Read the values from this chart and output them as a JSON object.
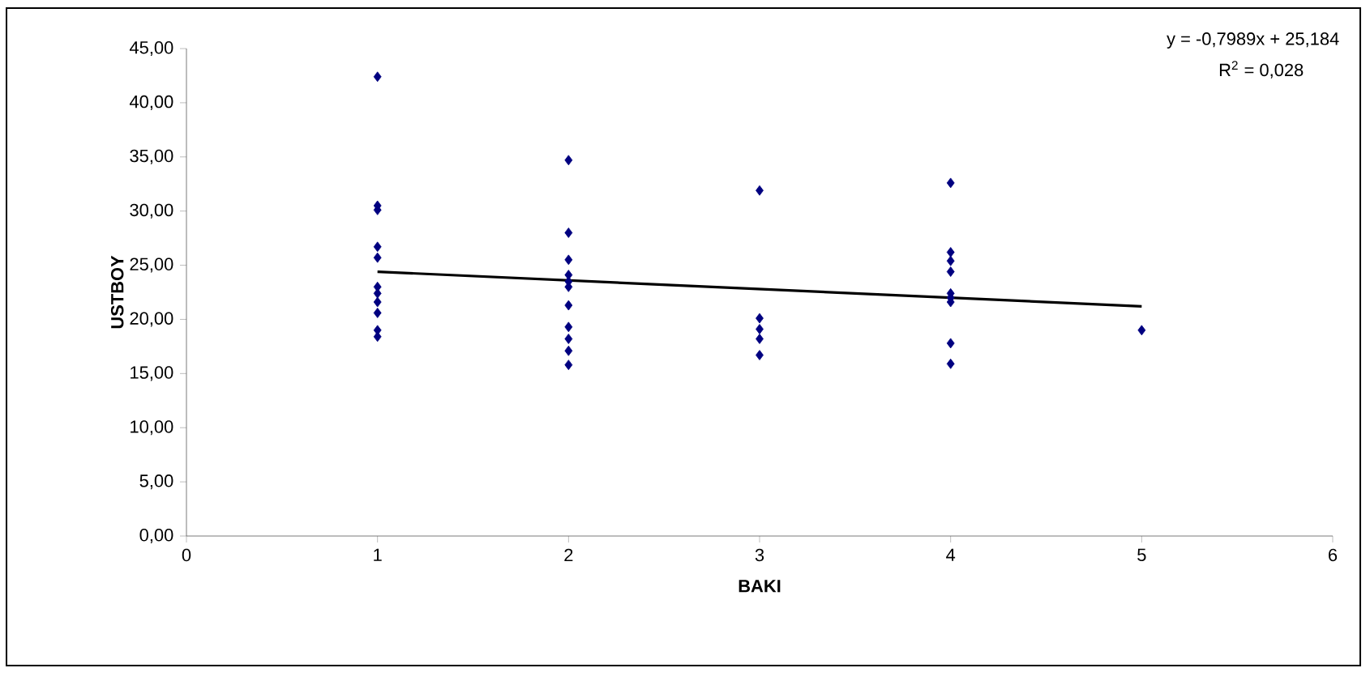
{
  "chart_data": {
    "type": "scatter",
    "xlabel": "BAKI",
    "ylabel": "USTBOY",
    "annotations": [
      "y = -0,7989x + 25,184",
      "R$^{2}$ = 0,028"
    ],
    "xlim": [
      0,
      6
    ],
    "xticks": [
      0,
      1,
      2,
      3,
      4,
      5,
      6
    ],
    "ylim": [
      0,
      45
    ],
    "yticks": [
      {
        "value": 0,
        "label": "0,00"
      },
      {
        "value": 5,
        "label": "5,00"
      },
      {
        "value": 10,
        "label": "10,00"
      },
      {
        "value": 15,
        "label": "15,00"
      },
      {
        "value": 20,
        "label": "20,00"
      },
      {
        "value": 25,
        "label": "25,00"
      },
      {
        "value": 30,
        "label": "30,00"
      },
      {
        "value": 35,
        "label": "35,00"
      },
      {
        "value": 40,
        "label": "40,00"
      },
      {
        "value": 45,
        "label": "45,00"
      }
    ],
    "marker": "diamond",
    "grid": false,
    "series": [
      {
        "color": "#000080",
        "x": [
          1,
          1,
          1,
          1,
          1,
          1,
          1,
          1,
          1,
          1,
          1,
          2,
          2,
          2,
          2,
          2,
          2,
          2,
          2,
          2,
          2,
          2,
          3,
          3,
          3,
          3,
          3,
          4,
          4,
          4,
          4,
          4,
          4,
          4,
          4,
          4,
          5
        ],
        "values": [
          42.4,
          30.5,
          30.1,
          26.7,
          25.7,
          23.0,
          22.4,
          21.6,
          20.6,
          19.0,
          18.4,
          34.7,
          28.0,
          25.5,
          24.1,
          23.5,
          23.0,
          21.3,
          19.3,
          18.2,
          17.1,
          15.8,
          31.9,
          20.1,
          19.1,
          18.2,
          16.7,
          32.6,
          26.2,
          25.4,
          24.4,
          22.4,
          22.0,
          21.6,
          17.8,
          15.9,
          19.0
        ]
      },
      {
        "type": "line",
        "color": "#000000",
        "marker": "none",
        "x": [
          1,
          5
        ],
        "values": [
          24.4,
          21.2
        ]
      }
    ]
  }
}
